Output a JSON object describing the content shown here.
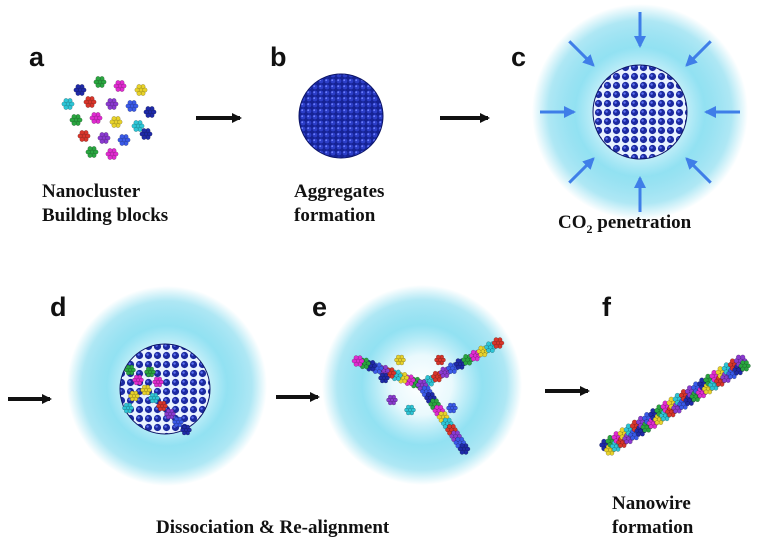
{
  "panels": [
    {
      "letter": "a",
      "caption_lines": [
        "Nanocluster",
        "Building blocks"
      ]
    },
    {
      "letter": "b",
      "caption_lines": [
        "Aggregates",
        "formation"
      ]
    },
    {
      "letter": "c",
      "caption_main": "CO",
      "caption_sub": "2",
      "caption_rest": " penetration"
    },
    {
      "letter": "d"
    },
    {
      "letter": "e"
    },
    {
      "letter": "f",
      "caption_lines": [
        "Nanowire",
        "formation"
      ]
    }
  ],
  "shared_caption": "Dissociation & Re-alignment",
  "colors": {
    "sphere": "#1a2a9c",
    "arrow_black": "#111111",
    "arrow_blue": "#3f7ee8",
    "cloud": "#5fd0ea",
    "clusters": [
      "#1f2aa8",
      "#2aa640",
      "#e02bd0",
      "#e8d22a",
      "#2ec5d6",
      "#d8352a",
      "#8a3ad0",
      "#3a5ae8"
    ]
  }
}
